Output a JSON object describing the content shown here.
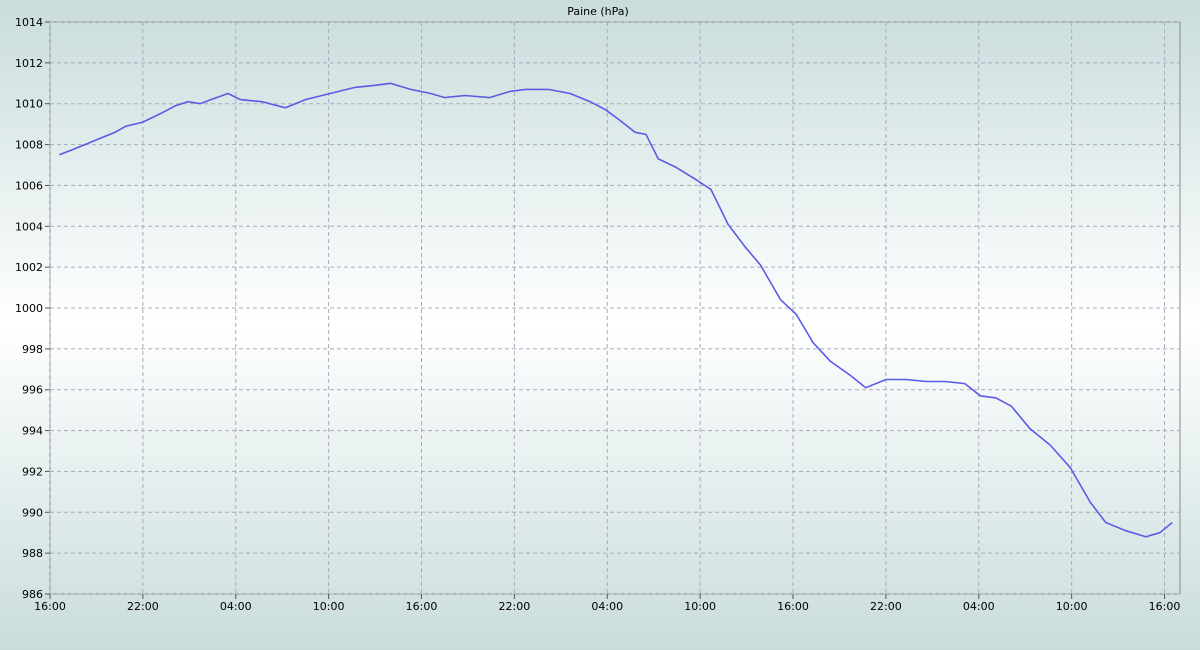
{
  "chart_data": {
    "type": "line",
    "title": "Paine (hPa)",
    "x": [
      0.6,
      1.6,
      2.9,
      4.2,
      4.9,
      6.0,
      7.1,
      8.1,
      8.9,
      9.7,
      10.4,
      11.5,
      12.3,
      13.7,
      15.2,
      16.5,
      18.1,
      19.7,
      21.0,
      22.0,
      23.3,
      24.6,
      25.5,
      26.8,
      28.4,
      29.7,
      30.7,
      32.2,
      33.6,
      34.9,
      35.9,
      36.8,
      37.8,
      38.5,
      39.3,
      40.4,
      41.7,
      42.7,
      43.8,
      44.9,
      45.9,
      47.2,
      48.2,
      49.3,
      50.4,
      51.7,
      52.7,
      54.0,
      55.3,
      56.6,
      57.8,
      59.1,
      60.1,
      61.1,
      62.1,
      63.3,
      64.6,
      65.9,
      67.2,
      68.2,
      69.5,
      70.8,
      71.7,
      72.5
    ],
    "series": [
      {
        "name": "Paine",
        "color": "#5b5be6",
        "values": [
          1007.5,
          1007.8,
          1008.2,
          1008.6,
          1008.9,
          1009.1,
          1009.5,
          1009.9,
          1010.1,
          1010.0,
          1010.2,
          1010.5,
          1010.2,
          1010.1,
          1009.8,
          1010.2,
          1010.5,
          1010.8,
          1010.9,
          1011.0,
          1010.7,
          1010.5,
          1010.3,
          1010.4,
          1010.3,
          1010.6,
          1010.7,
          1010.7,
          1010.5,
          1010.1,
          1009.7,
          1009.2,
          1008.6,
          1008.5,
          1007.3,
          1006.9,
          1006.3,
          1005.8,
          1004.1,
          1003.0,
          1002.1,
          1000.4,
          999.7,
          998.3,
          997.4,
          996.7,
          996.1,
          996.5,
          996.5,
          996.4,
          996.4,
          996.3,
          995.7,
          995.6,
          995.2,
          994.1,
          993.3,
          992.2,
          990.5,
          989.5,
          989.1,
          988.8,
          989.0,
          989.5
        ]
      }
    ],
    "xlim": [
      0,
      73
    ],
    "xticks": [
      {
        "value": 0,
        "label": "16:00"
      },
      {
        "value": 6,
        "label": "22:00"
      },
      {
        "value": 12,
        "label": "04:00"
      },
      {
        "value": 18,
        "label": "10:00"
      },
      {
        "value": 24,
        "label": "16:00"
      },
      {
        "value": 30,
        "label": "22:00"
      },
      {
        "value": 36,
        "label": "04:00"
      },
      {
        "value": 42,
        "label": "10:00"
      },
      {
        "value": 48,
        "label": "16:00"
      },
      {
        "value": 54,
        "label": "22:00"
      },
      {
        "value": 60,
        "label": "04:00"
      },
      {
        "value": 66,
        "label": "10:00"
      },
      {
        "value": 72,
        "label": "16:00"
      }
    ],
    "ylim": [
      986,
      1014
    ],
    "yticks": [
      986,
      988,
      990,
      992,
      994,
      996,
      998,
      1000,
      1002,
      1004,
      1006,
      1008,
      1010,
      1012,
      1014
    ],
    "grid": true
  }
}
